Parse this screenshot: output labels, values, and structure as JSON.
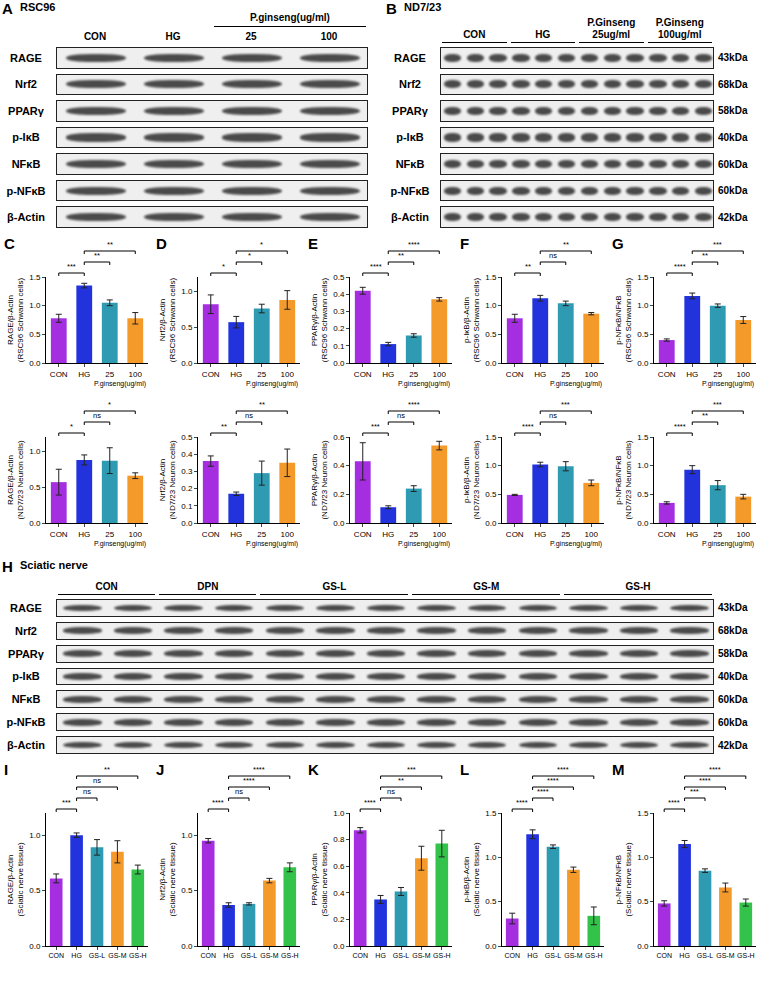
{
  "blots": [
    {
      "panel": "A",
      "title": "RSC96",
      "groups": [
        {
          "label": "CON",
          "lanes": 1
        },
        {
          "label": "HG",
          "lanes": 1
        },
        {
          "label": "25",
          "lanes": 1
        },
        {
          "label": "100",
          "lanes": 1
        }
      ],
      "span_header": {
        "label": "P.ginseng(ug/ml)",
        "from": 2,
        "to": 3
      },
      "rows": [
        {
          "protein": "RAGE"
        },
        {
          "protein": "Nrf2"
        },
        {
          "protein": "PPARγ"
        },
        {
          "protein": "p-IκB"
        },
        {
          "protein": "NFκB"
        },
        {
          "protein": "p-NFκB"
        },
        {
          "protein": "β-Actin"
        }
      ]
    },
    {
      "panel": "B",
      "title": "ND7/23",
      "groups": [
        {
          "label": "CON",
          "lanes": 3
        },
        {
          "label": "HG",
          "lanes": 3
        },
        {
          "label": "P.Ginseng 25ug/ml",
          "lanes": 3
        },
        {
          "label": "P.Ginseng 100ug/ml",
          "lanes": 3
        }
      ],
      "rows": [
        {
          "protein": "RAGE",
          "kda": "43kDa"
        },
        {
          "protein": "Nrf2",
          "kda": "68kDa"
        },
        {
          "protein": "PPARγ",
          "kda": "58kDa"
        },
        {
          "protein": "p-IκB",
          "kda": "40kDa"
        },
        {
          "protein": "NFκB",
          "kda": "60kDa"
        },
        {
          "protein": "p-NFκB",
          "kda": "60kDa"
        },
        {
          "protein": "β-Actin",
          "kda": "42kDa"
        }
      ]
    },
    {
      "panel": "H",
      "title": "Sciatic nerve",
      "groups": [
        {
          "label": "CON",
          "lanes": 2
        },
        {
          "label": "DPN",
          "lanes": 2
        },
        {
          "label": "GS-L",
          "lanes": 3
        },
        {
          "label": "GS-M",
          "lanes": 3
        },
        {
          "label": "GS-H",
          "lanes": 3
        }
      ],
      "rows": [
        {
          "protein": "RAGE",
          "kda": "43kDa"
        },
        {
          "protein": "Nrf2",
          "kda": "68kDa"
        },
        {
          "protein": "PPARγ",
          "kda": "58kDa"
        },
        {
          "protein": "p-IκB",
          "kda": "40kDa"
        },
        {
          "protein": "NFκB",
          "kda": "60kDa"
        },
        {
          "protein": "p-NFκB",
          "kda": "60kDa"
        },
        {
          "protein": "β-Actin",
          "kda": "42kDa"
        }
      ]
    }
  ],
  "chart_data": [
    {
      "panel": "C",
      "type": "bar",
      "y_label": "RAGE/β-Actin (RSC96 Schwann cells)",
      "categories": [
        "CON",
        "HG",
        "25",
        "100"
      ],
      "values": [
        0.78,
        1.35,
        1.05,
        0.78
      ],
      "errors": [
        0.07,
        0.04,
        0.05,
        0.1
      ],
      "colors": [
        "#a42ee0",
        "#2233dd",
        "#2f9bb3",
        "#f39a2b"
      ],
      "ylim": [
        0,
        1.5
      ],
      "yticks": [
        {
          "value": 0,
          "label": "0.0"
        },
        0.5,
        {
          "value": 1,
          "label": "1.0"
        },
        1.5
      ],
      "x_group": {
        "label": "P.ginseng(ug/ml)",
        "from": 2,
        "to": 3
      },
      "comparisons": [
        {
          "a": 0,
          "b": 1,
          "label": "***"
        },
        {
          "a": 1,
          "b": 2,
          "label": "**"
        },
        {
          "a": 1,
          "b": 3,
          "label": "**"
        }
      ]
    },
    {
      "panel": "D",
      "type": "bar",
      "y_label": "Nrf2/β-Actin (RSC96 Schwann cells)",
      "categories": [
        "CON",
        "HG",
        "25",
        "100"
      ],
      "values": [
        0.82,
        0.57,
        0.76,
        0.88
      ],
      "errors": [
        0.13,
        0.08,
        0.06,
        0.13
      ],
      "colors": [
        "#a42ee0",
        "#2233dd",
        "#2f9bb3",
        "#f39a2b"
      ],
      "ylim": [
        0,
        1.2
      ],
      "yticks": [
        {
          "value": 0,
          "label": "0.0"
        },
        0.5,
        {
          "value": 1,
          "label": "1.0"
        }
      ],
      "x_group": {
        "label": "P.ginseng(ug/ml)",
        "from": 2,
        "to": 3
      },
      "comparisons": [
        {
          "a": 0,
          "b": 1,
          "label": "*"
        },
        {
          "a": 1,
          "b": 2,
          "label": "*"
        },
        {
          "a": 1,
          "b": 3,
          "label": "*"
        }
      ]
    },
    {
      "panel": "E",
      "type": "bar",
      "y_label": "PPARγ/β-Actin (RSC96 Schwann cells)",
      "categories": [
        "CON",
        "HG",
        "25",
        "100"
      ],
      "values": [
        0.42,
        0.11,
        0.16,
        0.37
      ],
      "errors": [
        0.02,
        0.01,
        0.01,
        0.01
      ],
      "colors": [
        "#a42ee0",
        "#2233dd",
        "#2f9bb3",
        "#f39a2b"
      ],
      "ylim": [
        0,
        0.5
      ],
      "yticks": [
        {
          "value": 0,
          "label": "0.0"
        },
        0.1,
        0.2,
        0.3,
        0.4,
        0.5
      ],
      "x_group": {
        "label": "P.ginseng(ug/ml)",
        "from": 2,
        "to": 3
      },
      "comparisons": [
        {
          "a": 0,
          "b": 1,
          "label": "****"
        },
        {
          "a": 1,
          "b": 2,
          "label": "**"
        },
        {
          "a": 1,
          "b": 3,
          "label": "****"
        }
      ]
    },
    {
      "panel": "F",
      "type": "bar",
      "y_label": "p-IκB/β-Actin (RSC96 Schwann cells)",
      "categories": [
        "CON",
        "HG",
        "25",
        "100"
      ],
      "values": [
        0.78,
        1.13,
        1.04,
        0.86
      ],
      "errors": [
        0.07,
        0.05,
        0.04,
        0.02
      ],
      "colors": [
        "#a42ee0",
        "#2233dd",
        "#2f9bb3",
        "#f39a2b"
      ],
      "ylim": [
        0,
        1.5
      ],
      "yticks": [
        {
          "value": 0,
          "label": "0.0"
        },
        0.5,
        {
          "value": 1,
          "label": "1.0"
        },
        1.5
      ],
      "x_group": {
        "label": "P.ginseng(ug/ml)",
        "from": 2,
        "to": 3
      },
      "comparisons": [
        {
          "a": 0,
          "b": 1,
          "label": "**"
        },
        {
          "a": 1,
          "b": 2,
          "label": "ns"
        },
        {
          "a": 1,
          "b": 3,
          "label": "**"
        }
      ]
    },
    {
      "panel": "G",
      "type": "bar",
      "y_label": "p-NFκB/NFκB (RSC96 Schwann cells)",
      "categories": [
        "CON",
        "HG",
        "25",
        "100"
      ],
      "values": [
        0.4,
        1.17,
        1.0,
        0.75
      ],
      "errors": [
        0.02,
        0.05,
        0.03,
        0.06
      ],
      "colors": [
        "#a42ee0",
        "#2233dd",
        "#2f9bb3",
        "#f39a2b"
      ],
      "ylim": [
        0,
        1.5
      ],
      "yticks": [
        {
          "value": 0,
          "label": "0.0"
        },
        0.5,
        {
          "value": 1,
          "label": "1.0"
        },
        1.5
      ],
      "x_group": {
        "label": "P.ginseng(ug/ml)",
        "from": 2,
        "to": 3
      },
      "comparisons": [
        {
          "a": 0,
          "b": 1,
          "label": "****"
        },
        {
          "a": 1,
          "b": 2,
          "label": "**"
        },
        {
          "a": 1,
          "b": 3,
          "label": "***"
        }
      ]
    },
    {
      "type": "bar",
      "y_label": "RAGE/β-Actin (ND7/23 Neuron cells)",
      "categories": [
        "CON",
        "HG",
        "25",
        "100"
      ],
      "values": [
        0.57,
        0.88,
        0.87,
        0.66
      ],
      "errors": [
        0.18,
        0.07,
        0.18,
        0.04
      ],
      "colors": [
        "#a42ee0",
        "#2233dd",
        "#2f9bb3",
        "#f39a2b"
      ],
      "ylim": [
        0,
        1.2
      ],
      "yticks": [
        {
          "value": 0,
          "label": "0.0"
        },
        0.5,
        {
          "value": 1,
          "label": "1.0"
        }
      ],
      "x_group": {
        "label": "P.ginseng(ug/ml)",
        "from": 2,
        "to": 3
      },
      "comparisons": [
        {
          "a": 0,
          "b": 1,
          "label": "*"
        },
        {
          "a": 1,
          "b": 2,
          "label": "ns"
        },
        {
          "a": 1,
          "b": 3,
          "label": "*"
        }
      ]
    },
    {
      "type": "bar",
      "y_label": "Nrf2/β-Actin (ND7/23 Neuron cells)",
      "categories": [
        "CON",
        "HG",
        "25",
        "100"
      ],
      "values": [
        0.36,
        0.17,
        0.29,
        0.35
      ],
      "errors": [
        0.03,
        0.01,
        0.07,
        0.08
      ],
      "colors": [
        "#a42ee0",
        "#2233dd",
        "#2f9bb3",
        "#f39a2b"
      ],
      "ylim": [
        0,
        0.5
      ],
      "yticks": [
        {
          "value": 0,
          "label": "0.0"
        },
        0.1,
        0.2,
        0.3,
        0.4,
        0.5
      ],
      "x_group": {
        "label": "P.ginseng(ug/ml)",
        "from": 2,
        "to": 3
      },
      "comparisons": [
        {
          "a": 0,
          "b": 1,
          "label": "**"
        },
        {
          "a": 1,
          "b": 2,
          "label": "ns"
        },
        {
          "a": 1,
          "b": 3,
          "label": "**"
        }
      ]
    },
    {
      "type": "bar",
      "y_label": "PPARγ/β-Actin (ND7/23 Neuron cells)",
      "categories": [
        "CON",
        "HG",
        "25",
        "100"
      ],
      "values": [
        0.43,
        0.11,
        0.24,
        0.54
      ],
      "errors": [
        0.13,
        0.01,
        0.02,
        0.03
      ],
      "colors": [
        "#a42ee0",
        "#2233dd",
        "#2f9bb3",
        "#f39a2b"
      ],
      "ylim": [
        0,
        0.6
      ],
      "yticks": [
        {
          "value": 0,
          "label": "0.0"
        },
        0.2,
        0.4,
        0.6
      ],
      "x_group": {
        "label": "P.ginseng(ug/ml)",
        "from": 2,
        "to": 3
      },
      "comparisons": [
        {
          "a": 0,
          "b": 1,
          "label": "***"
        },
        {
          "a": 1,
          "b": 2,
          "label": "ns"
        },
        {
          "a": 1,
          "b": 3,
          "label": "****"
        }
      ]
    },
    {
      "type": "bar",
      "y_label": "p-IκB/β-Actin (ND7/23 Neuron cells)",
      "categories": [
        "CON",
        "HG",
        "25",
        "100"
      ],
      "values": [
        0.49,
        1.02,
        0.99,
        0.7
      ],
      "errors": [
        0.01,
        0.04,
        0.08,
        0.05
      ],
      "colors": [
        "#a42ee0",
        "#2233dd",
        "#2f9bb3",
        "#f39a2b"
      ],
      "ylim": [
        0,
        1.5
      ],
      "yticks": [
        {
          "value": 0,
          "label": "0.0"
        },
        0.5,
        {
          "value": 1,
          "label": "1.0"
        },
        1.5
      ],
      "x_group": {
        "label": "P.ginseng(ug/ml)",
        "from": 2,
        "to": 3
      },
      "comparisons": [
        {
          "a": 0,
          "b": 1,
          "label": "****"
        },
        {
          "a": 1,
          "b": 2,
          "label": "ns"
        },
        {
          "a": 1,
          "b": 3,
          "label": "***"
        }
      ]
    },
    {
      "type": "bar",
      "y_label": "p-NFκB/NFκB (ND7/23 Neuron cells)",
      "categories": [
        "CON",
        "HG",
        "25",
        "100"
      ],
      "values": [
        0.35,
        0.93,
        0.66,
        0.46
      ],
      "errors": [
        0.02,
        0.07,
        0.08,
        0.04
      ],
      "colors": [
        "#a42ee0",
        "#2233dd",
        "#2f9bb3",
        "#f39a2b"
      ],
      "ylim": [
        0,
        1.5
      ],
      "yticks": [
        {
          "value": 0,
          "label": "0.0"
        },
        0.5,
        {
          "value": 1,
          "label": "1.0"
        },
        1.5
      ],
      "x_group": {
        "label": "P.ginseng(ug/ml)",
        "from": 2,
        "to": 3
      },
      "comparisons": [
        {
          "a": 0,
          "b": 1,
          "label": "****"
        },
        {
          "a": 1,
          "b": 2,
          "label": "**"
        },
        {
          "a": 1,
          "b": 3,
          "label": "***"
        }
      ]
    },
    {
      "panel": "I",
      "type": "bar",
      "y_label": "RAGE/β-Actin (Sciatic nerve tissue)",
      "categories": [
        "CON",
        "HG",
        "GS-L",
        "GS-M",
        "GS-H"
      ],
      "values": [
        0.61,
        1.0,
        0.89,
        0.85,
        0.69
      ],
      "errors": [
        0.04,
        0.02,
        0.07,
        0.1,
        0.04
      ],
      "colors": [
        "#a42ee0",
        "#2233dd",
        "#2f9bb3",
        "#f39a2b",
        "#33c24a"
      ],
      "ylim": [
        0,
        1.2
      ],
      "yticks": [
        {
          "value": 0,
          "label": "0.0"
        },
        0.5,
        {
          "value": 1,
          "label": "1.0"
        }
      ],
      "comparisons": [
        {
          "a": 0,
          "b": 1,
          "label": "***"
        },
        {
          "a": 1,
          "b": 2,
          "label": "ns"
        },
        {
          "a": 1,
          "b": 3,
          "label": "ns"
        },
        {
          "a": 1,
          "b": 4,
          "label": "**"
        }
      ]
    },
    {
      "panel": "J",
      "type": "bar",
      "y_label": "Nrf2/β-Actin (Sciatic nerve tissue)",
      "categories": [
        "CON",
        "HG",
        "GS-L",
        "GS-M",
        "GS-H"
      ],
      "values": [
        0.95,
        0.37,
        0.38,
        0.59,
        0.71
      ],
      "errors": [
        0.02,
        0.02,
        0.01,
        0.02,
        0.04
      ],
      "colors": [
        "#a42ee0",
        "#2233dd",
        "#2f9bb3",
        "#f39a2b",
        "#33c24a"
      ],
      "ylim": [
        0,
        1.2
      ],
      "yticks": [
        {
          "value": 0,
          "label": "0.0"
        },
        0.5,
        {
          "value": 1,
          "label": "1.0"
        }
      ],
      "comparisons": [
        {
          "a": 0,
          "b": 1,
          "label": "****"
        },
        {
          "a": 1,
          "b": 2,
          "label": "ns"
        },
        {
          "a": 1,
          "b": 3,
          "label": "****"
        },
        {
          "a": 1,
          "b": 4,
          "label": "****"
        }
      ]
    },
    {
      "panel": "K",
      "type": "bar",
      "y_label": "PPARγ/β-Actin (Sciatic nerve tissue)",
      "categories": [
        "CON",
        "HG",
        "GS-L",
        "GS-M",
        "GS-H"
      ],
      "values": [
        0.87,
        0.35,
        0.41,
        0.66,
        0.77
      ],
      "errors": [
        0.02,
        0.03,
        0.03,
        0.09,
        0.1
      ],
      "colors": [
        "#a42ee0",
        "#2233dd",
        "#2f9bb3",
        "#f39a2b",
        "#33c24a"
      ],
      "ylim": [
        0,
        1
      ],
      "yticks": [
        {
          "value": 0,
          "label": "0.0"
        },
        0.2,
        0.4,
        0.6,
        0.8,
        {
          "value": 1,
          "label": "1.0"
        }
      ],
      "comparisons": [
        {
          "a": 0,
          "b": 1,
          "label": "****"
        },
        {
          "a": 1,
          "b": 2,
          "label": "ns"
        },
        {
          "a": 1,
          "b": 3,
          "label": "**"
        },
        {
          "a": 1,
          "b": 4,
          "label": "***"
        }
      ]
    },
    {
      "panel": "L",
      "type": "bar",
      "y_label": "p-IκB/β-Actin (Sciatic nerve tissue)",
      "categories": [
        "CON",
        "HG",
        "GS-L",
        "GS-M",
        "GS-H"
      ],
      "values": [
        0.31,
        1.26,
        1.12,
        0.86,
        0.34
      ],
      "errors": [
        0.06,
        0.05,
        0.02,
        0.03,
        0.1
      ],
      "colors": [
        "#a42ee0",
        "#2233dd",
        "#2f9bb3",
        "#f39a2b",
        "#33c24a"
      ],
      "ylim": [
        0,
        1.5
      ],
      "yticks": [
        {
          "value": 0,
          "label": "0.0"
        },
        0.5,
        {
          "value": 1,
          "label": "1.0"
        },
        1.5
      ],
      "comparisons": [
        {
          "a": 0,
          "b": 1,
          "label": "****"
        },
        {
          "a": 1,
          "b": 2,
          "label": "****"
        },
        {
          "a": 1,
          "b": 3,
          "label": "****"
        },
        {
          "a": 1,
          "b": 4,
          "label": "****"
        }
      ]
    },
    {
      "panel": "M",
      "type": "bar",
      "y_label": "p-NFκB/NFκB (Sciatic nerve tissue)",
      "categories": [
        "CON",
        "HG",
        "GS-L",
        "GS-M",
        "GS-H"
      ],
      "values": [
        0.48,
        1.15,
        0.85,
        0.66,
        0.49
      ],
      "errors": [
        0.03,
        0.04,
        0.02,
        0.05,
        0.04
      ],
      "colors": [
        "#a42ee0",
        "#2233dd",
        "#2f9bb3",
        "#f39a2b",
        "#33c24a"
      ],
      "ylim": [
        0,
        1.5
      ],
      "yticks": [
        {
          "value": 0,
          "label": "0.0"
        },
        0.5,
        {
          "value": 1,
          "label": "1.0"
        },
        1.5
      ],
      "comparisons": [
        {
          "a": 0,
          "b": 1,
          "label": "****"
        },
        {
          "a": 1,
          "b": 2,
          "label": "***"
        },
        {
          "a": 1,
          "b": 3,
          "label": "****"
        },
        {
          "a": 1,
          "b": 4,
          "label": "****"
        }
      ]
    }
  ]
}
